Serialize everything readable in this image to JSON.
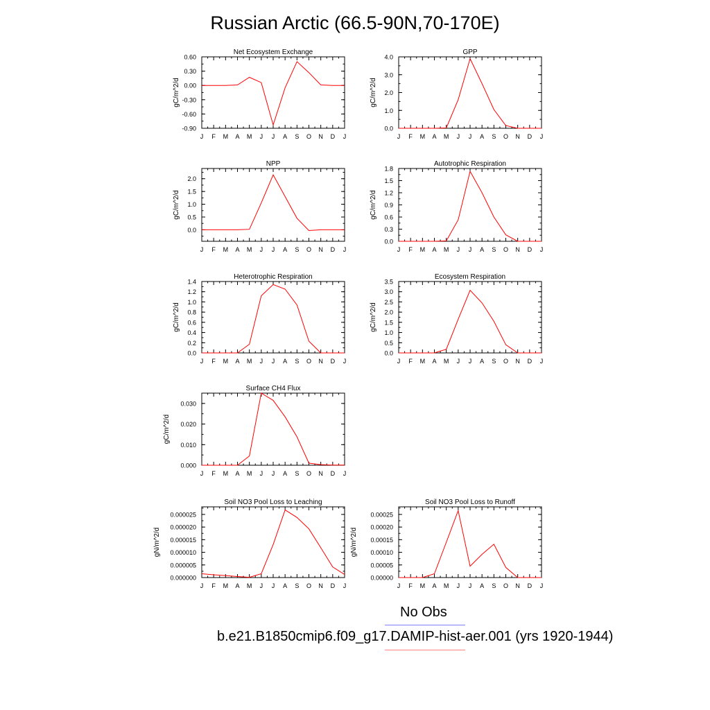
{
  "title": "Russian Arctic (66.5-90N,70-170E)",
  "colors": {
    "model_line": "#ff0000",
    "obs_line": "#8080ff",
    "axis": "#000000"
  },
  "legend": {
    "obs_label": "No Obs",
    "model_label": "b.e21.B1850cmip6.f09_g17.DAMIP-hist-aer.001 (yrs 1920-1944)"
  },
  "months": [
    "J",
    "F",
    "M",
    "A",
    "M",
    "J",
    "J",
    "A",
    "S",
    "O",
    "N",
    "D",
    "J"
  ],
  "chart_data": [
    {
      "type": "line",
      "title": "Net Ecosystem Exchange",
      "ylabel": "gC/m^2/d",
      "ylim": [
        -0.9,
        0.6
      ],
      "yticks": [
        0.6,
        0.3,
        0.0,
        -0.3,
        -0.6,
        -0.9
      ],
      "ytick_labels": [
        "0.60",
        "0.30",
        "0.00",
        "-0.30",
        "-0.60",
        "-0.90"
      ],
      "values": [
        0.0,
        0.0,
        0.0,
        0.01,
        0.17,
        0.06,
        -0.83,
        -0.05,
        0.5,
        0.27,
        0.01,
        0.0,
        0.0
      ]
    },
    {
      "type": "line",
      "title": "GPP",
      "ylabel": "gC/m^2/d",
      "ylim": [
        0,
        4
      ],
      "yticks": [
        0,
        1,
        2,
        3,
        4
      ],
      "ytick_labels": [
        "0.0",
        "1.0",
        "2.0",
        "3.0",
        "4.0"
      ],
      "values": [
        0,
        0,
        0,
        0,
        0.02,
        1.6,
        3.9,
        2.5,
        1.05,
        0.15,
        0,
        0,
        0
      ]
    },
    {
      "type": "line",
      "title": "NPP",
      "ylabel": "gC/m^2/d",
      "ylim": [
        -0.45,
        2.4
      ],
      "yticks": [
        0.0,
        0.5,
        1.0,
        1.5,
        2.0
      ],
      "ytick_labels": [
        "0.0",
        "0.5",
        "1.0",
        "1.5",
        "2.0"
      ],
      "values": [
        0,
        0,
        0,
        0,
        0.02,
        1.05,
        2.15,
        1.3,
        0.45,
        -0.03,
        0,
        0,
        0
      ]
    },
    {
      "type": "line",
      "title": "Autotrophic Respiration",
      "ylabel": "gC/m^2/d",
      "ylim": [
        0,
        1.8
      ],
      "yticks": [
        0.0,
        0.3,
        0.6,
        0.9,
        1.2,
        1.5,
        1.8
      ],
      "ytick_labels": [
        "0.0",
        "0.3",
        "0.6",
        "0.9",
        "1.2",
        "1.5",
        "1.8"
      ],
      "values": [
        0,
        0,
        0,
        0,
        0.01,
        0.53,
        1.73,
        1.2,
        0.6,
        0.16,
        0,
        0,
        0
      ]
    },
    {
      "type": "line",
      "title": "Heterotrophic Respiration",
      "ylabel": "gC/m^2/d",
      "ylim": [
        0,
        1.4
      ],
      "yticks": [
        0.0,
        0.2,
        0.4,
        0.6,
        0.8,
        1.0,
        1.2,
        1.4
      ],
      "ytick_labels": [
        "0.0",
        "0.2",
        "0.4",
        "0.6",
        "0.8",
        "1.0",
        "1.2",
        "1.4"
      ],
      "values": [
        0,
        0,
        0,
        0,
        0.17,
        1.12,
        1.34,
        1.25,
        0.94,
        0.23,
        0,
        0,
        0
      ]
    },
    {
      "type": "line",
      "title": "Ecosystem Respiration",
      "ylabel": "gC/m^2/d",
      "ylim": [
        0,
        3.5
      ],
      "yticks": [
        0.0,
        0.5,
        1.0,
        1.5,
        2.0,
        2.5,
        3.0,
        3.5
      ],
      "ytick_labels": [
        "0.0",
        "0.5",
        "1.0",
        "1.5",
        "2.0",
        "2.5",
        "3.0",
        "3.5"
      ],
      "values": [
        0,
        0,
        0,
        0,
        0.18,
        1.65,
        3.07,
        2.45,
        1.55,
        0.4,
        0,
        0,
        0
      ]
    },
    {
      "type": "line",
      "title": "Surface CH4 Flux",
      "ylabel": "gC/m^2/d",
      "ylim": [
        0,
        0.035
      ],
      "yticks": [
        0.0,
        0.01,
        0.02,
        0.03
      ],
      "ytick_labels": [
        "0.000",
        "0.010",
        "0.020",
        "0.030"
      ],
      "values": [
        0,
        0,
        0,
        0,
        0.0045,
        0.035,
        0.0315,
        0.0235,
        0.0138,
        0.001,
        0.0003,
        0.0001,
        0.0001
      ]
    },
    {
      "type": "line",
      "title": "Soil NO3 Pool Loss to Leaching",
      "ylabel": "gN/m^2/d",
      "ylim": [
        0,
        2.8e-05
      ],
      "yticks": [
        0,
        5e-06,
        1e-05,
        1.5e-05,
        2e-05,
        2.5e-05
      ],
      "ytick_labels": [
        "0.000000",
        "0.000005",
        "0.000010",
        "0.000015",
        "0.000020",
        "0.000025"
      ],
      "values": [
        1.5e-06,
        1.1e-06,
        8e-07,
        4e-07,
        1e-07,
        1.5e-06,
        1.31e-05,
        2.68e-05,
        2.38e-05,
        1.93e-05,
        1.18e-05,
        4.2e-06,
        1.2e-06
      ]
    },
    {
      "type": "line",
      "title": "Soil NO3 Pool Loss to Runoff",
      "ylabel": "gN/m^2/d",
      "ylim": [
        0,
        0.00028
      ],
      "yticks": [
        0,
        5e-05,
        0.0001,
        0.00015,
        0.0002,
        0.00025
      ],
      "ytick_labels": [
        "0.00000",
        "0.00005",
        "0.00010",
        "0.00015",
        "0.00020",
        "0.00025"
      ],
      "values": [
        0,
        0,
        0,
        1.5e-05,
        0.00014,
        0.000265,
        4.5e-05,
        9.2e-05,
        0.000132,
        4e-05,
        0,
        0,
        0
      ]
    }
  ]
}
